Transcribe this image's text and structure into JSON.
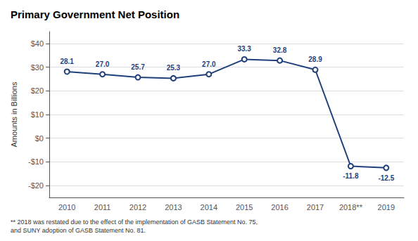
{
  "chart_data": {
    "type": "line",
    "title": "Primary Government Net Position",
    "ylabel": "Amounts in Billions",
    "footnote": "** 2018 was restated due to the effect of the implementation of GASB Statement No. 75,\nand SUNY adoption of GASB Statement No. 81.",
    "categories": [
      "2010",
      "2011",
      "2012",
      "2013",
      "2014",
      "2015",
      "2016",
      "2017",
      "2018**",
      "2019"
    ],
    "values": [
      28.1,
      27.0,
      25.7,
      25.3,
      27.0,
      33.3,
      32.8,
      28.9,
      -11.8,
      -12.5
    ],
    "value_labels": [
      "28.1",
      "27.0",
      "25.7",
      "25.3",
      "27.0",
      "33.3",
      "32.8",
      "28.9",
      "-11.8",
      "-12.5"
    ],
    "data_labels": true,
    "color": "#1F3F7A",
    "marker": "circle",
    "ylim": [
      -25,
      45
    ],
    "yticks": [
      {
        "value": -20,
        "label": "-$20"
      },
      {
        "value": -10,
        "label": "-$10"
      },
      {
        "value": 0,
        "label": "$0"
      },
      {
        "value": 10,
        "label": "$10"
      },
      {
        "value": 20,
        "label": "$20"
      },
      {
        "value": 30,
        "label": "$30"
      },
      {
        "value": 40,
        "label": "$40"
      }
    ],
    "grid": true
  }
}
